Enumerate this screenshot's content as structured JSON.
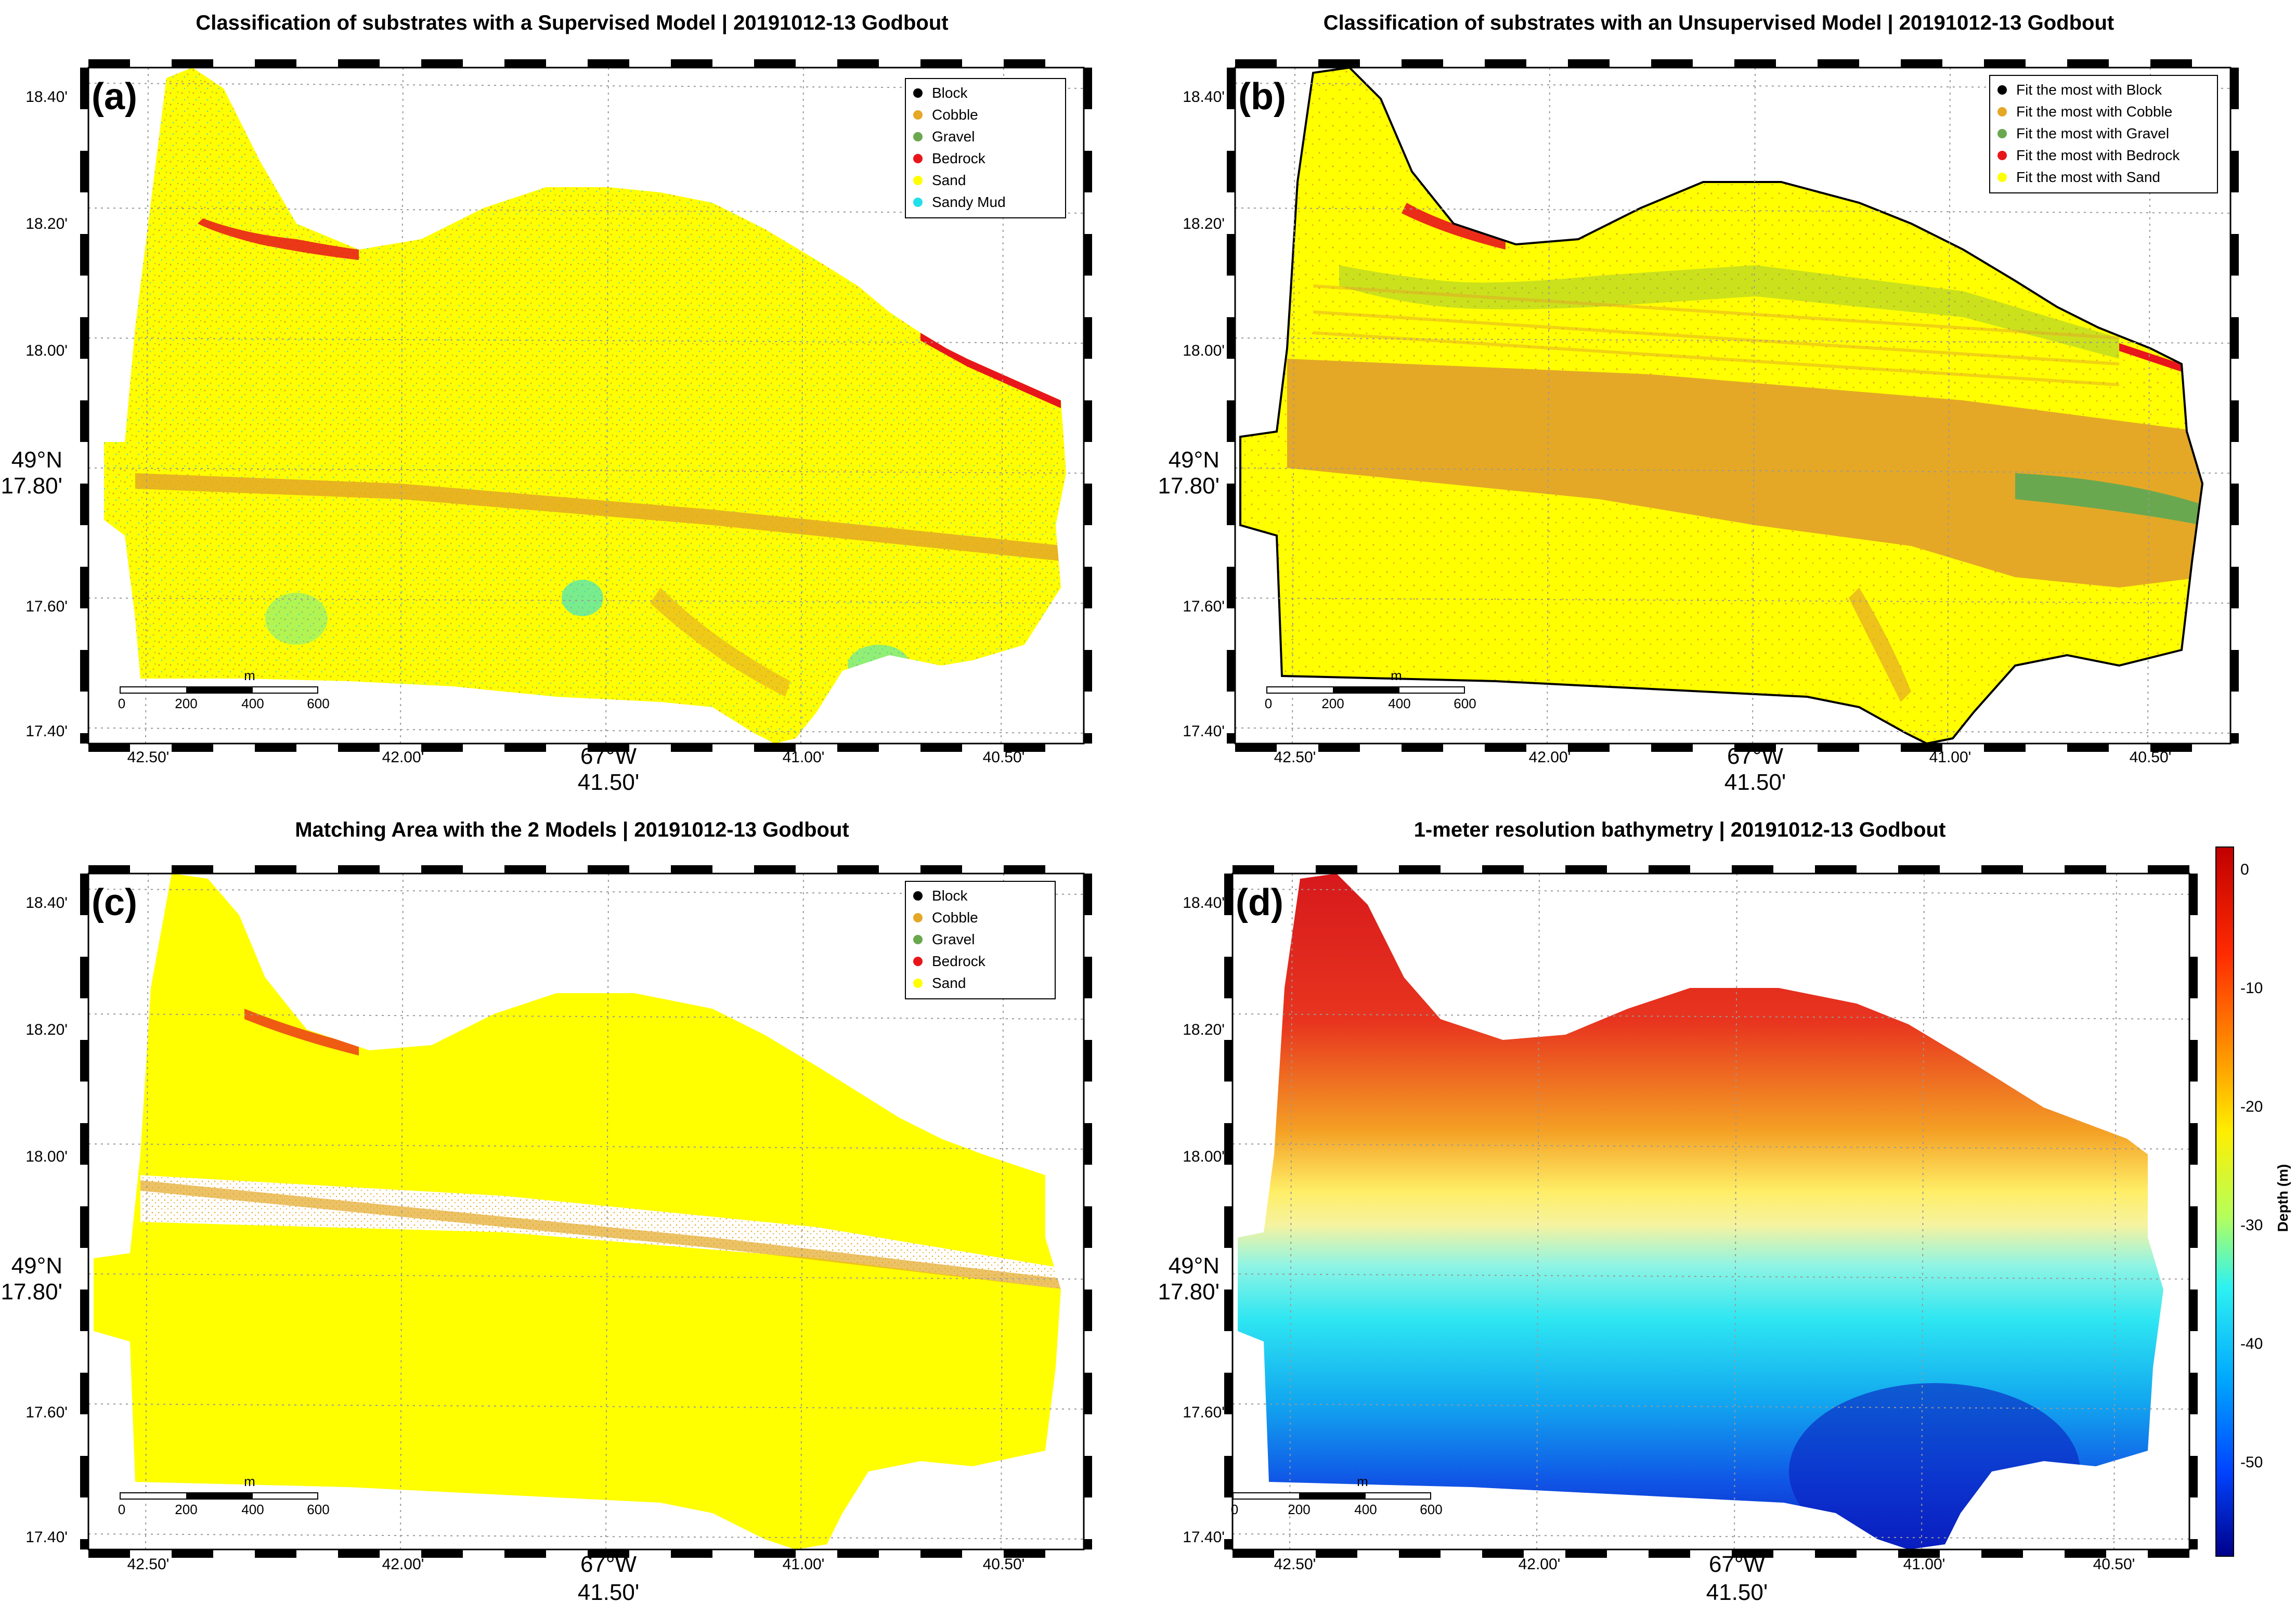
{
  "figure": {
    "panels": [
      {
        "id": "a",
        "label": "(a)",
        "title": "Classification of substrates with a Supervised Model | 20191012-13 Godbout",
        "legend": [
          {
            "label": "Block",
            "color": "#000000"
          },
          {
            "label": "Cobble",
            "color": "#e4a826"
          },
          {
            "label": "Gravel",
            "color": "#6aa84f"
          },
          {
            "label": "Bedrock",
            "color": "#e8161b"
          },
          {
            "label": "Sand",
            "color": "#ffff00"
          },
          {
            "label": "Sandy Mud",
            "color": "#22e0e8"
          }
        ]
      },
      {
        "id": "b",
        "label": "(b)",
        "title": "Classification of substrates with an Unsupervised Model | 20191012-13 Godbout",
        "legend": [
          {
            "label": "Fit the most with Block",
            "color": "#000000"
          },
          {
            "label": "Fit the most with Cobble",
            "color": "#e4a826"
          },
          {
            "label": "Fit the most with Gravel",
            "color": "#6aa84f"
          },
          {
            "label": "Fit the most with Bedrock",
            "color": "#e8161b"
          },
          {
            "label": "Fit the most with Sand",
            "color": "#ffff00"
          }
        ]
      },
      {
        "id": "c",
        "label": "(c)",
        "title": "Matching Area with the 2 Models | 20191012-13 Godbout",
        "legend": [
          {
            "label": "Block",
            "color": "#000000"
          },
          {
            "label": "Cobble",
            "color": "#e4a826"
          },
          {
            "label": "Gravel",
            "color": "#6aa84f"
          },
          {
            "label": "Bedrock",
            "color": "#e8161b"
          },
          {
            "label": "Sand",
            "color": "#ffff00"
          }
        ]
      },
      {
        "id": "d",
        "label": "(d)",
        "title": "1-meter resolution bathymetry | 20191012-13 Godbout",
        "colorbar": {
          "label": "Depth (m)",
          "ticks": [
            "0",
            "-10",
            "-20",
            "-30",
            "-40",
            "-50"
          ],
          "range": [
            -58,
            2
          ]
        }
      }
    ],
    "axes": {
      "lat_ticks": [
        "18.40'",
        "18.20'",
        "18.00'",
        "17.80'",
        "17.60'",
        "17.40'"
      ],
      "lat_major": "49°N",
      "lon_ticks": [
        "42.50'",
        "42.00'",
        "41.50'",
        "41.00'",
        "40.50'"
      ],
      "lon_major": "67°W"
    },
    "scalebar": {
      "unit": "m",
      "ticks": [
        "0",
        "200",
        "400",
        "600"
      ]
    },
    "colors": {
      "sand": "#ffff00",
      "cobble": "#e4a826",
      "gravel": "#6aa84f",
      "bedrock": "#e8161b",
      "block": "#000000",
      "sandy_mud": "#22e0e8"
    }
  }
}
